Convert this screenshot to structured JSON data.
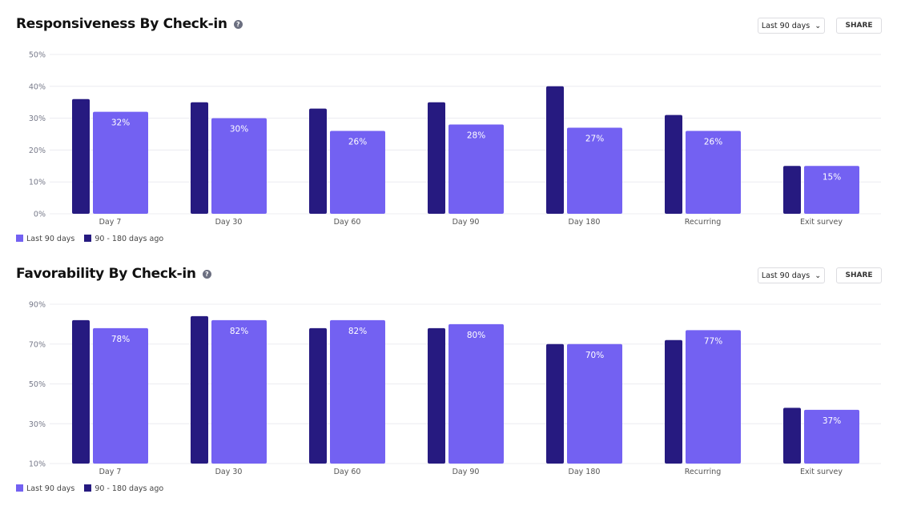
{
  "colors": {
    "current": "#7361f2",
    "previous": "#261a80",
    "grid": "#ececf0",
    "axis_text": "#777a8a"
  },
  "controls": {
    "range_label": "Last 90 days",
    "share_label": "SHARE",
    "help": "?"
  },
  "legend": {
    "current": "Last 90 days",
    "previous": "90 - 180 days ago"
  },
  "chart_data": [
    {
      "type": "bar",
      "title": "Responsiveness By Check-in",
      "categories": [
        "Day 7",
        "Day 30",
        "Day 60",
        "Day 90",
        "Day 180",
        "Recurring",
        "Exit survey"
      ],
      "series": [
        {
          "name": "90 - 180 days ago",
          "values": [
            36,
            35,
            33,
            35,
            40,
            31,
            15
          ]
        },
        {
          "name": "Last 90 days",
          "values": [
            32,
            30,
            26,
            28,
            27,
            26,
            15
          ]
        }
      ],
      "data_labels": [
        "32%",
        "30%",
        "26%",
        "28%",
        "27%",
        "26%",
        "15%"
      ],
      "yticks": [
        0,
        10,
        20,
        30,
        40,
        50
      ],
      "ytick_labels": [
        "0%",
        "10%",
        "20%",
        "30%",
        "40%",
        "50%"
      ],
      "ylim": [
        0,
        50
      ],
      "grid": true,
      "legend_position": "bottom-left"
    },
    {
      "type": "bar",
      "title": "Favorability By Check-in",
      "categories": [
        "Day 7",
        "Day 30",
        "Day 60",
        "Day 90",
        "Day 180",
        "Recurring",
        "Exit survey"
      ],
      "series": [
        {
          "name": "90 - 180 days ago",
          "values": [
            82,
            84,
            78,
            78,
            70,
            72,
            38
          ]
        },
        {
          "name": "Last 90 days",
          "values": [
            78,
            82,
            82,
            80,
            70,
            77,
            37
          ]
        }
      ],
      "data_labels": [
        "78%",
        "82%",
        "82%",
        "80%",
        "70%",
        "77%",
        "37%"
      ],
      "yticks": [
        10,
        30,
        50,
        70,
        90
      ],
      "ytick_labels": [
        "10%",
        "30%",
        "50%",
        "70%",
        "90%"
      ],
      "ylim": [
        10,
        90
      ],
      "grid": true,
      "legend_position": "bottom-left"
    }
  ]
}
